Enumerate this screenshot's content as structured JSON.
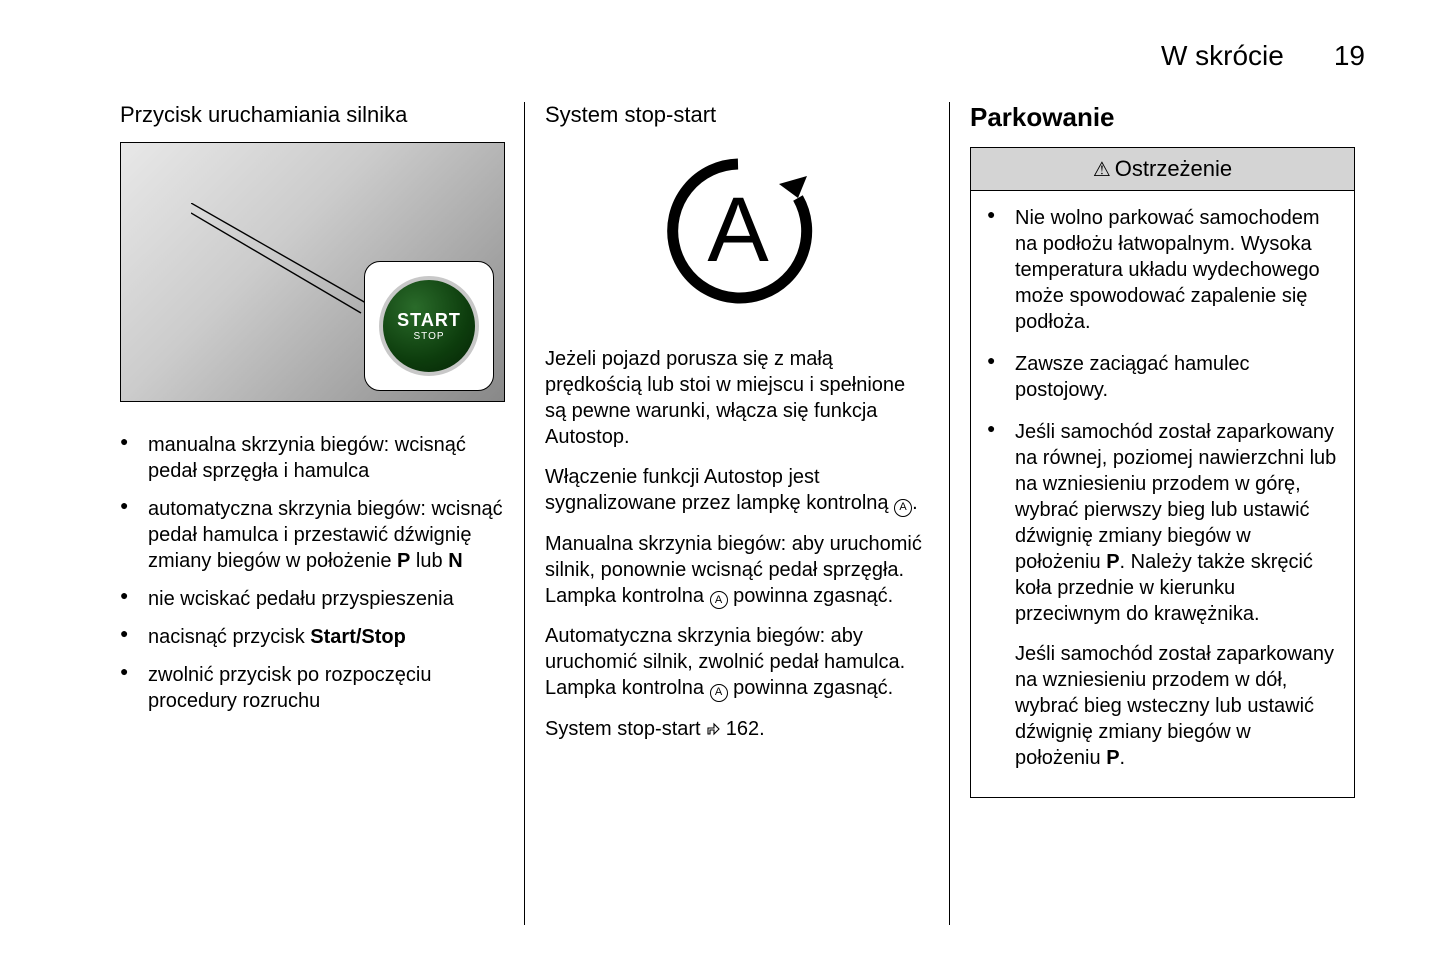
{
  "header": {
    "title": "W skrócie",
    "page_number": "19"
  },
  "col1": {
    "heading": "Przycisk uruchamiania silnika",
    "start_button": {
      "line1": "START",
      "line2": "STOP"
    },
    "bullets": [
      "manualna skrzynia biegów: wcisnąć pedał sprzęgła i hamulca",
      "automatyczna skrzynia biegów: wcisnąć pedał hamulca i przestawić dźwignię zmiany biegów w położenie P lub N",
      "nie wciskać pedału przyspieszenia",
      "nacisnąć przycisk Start/Stop",
      "zwolnić przycisk po rozpoczęciu procedury rozruchu"
    ]
  },
  "col2": {
    "heading": "System stop-start",
    "autostop_letter": "A",
    "p1": "Jeżeli pojazd porusza się z małą prędkością lub stoi w miejscu i spełnione są pewne warunki, włącza się funkcja Autostop.",
    "p2_pre": "Włączenie funkcji Autostop jest sygnalizowane przez lampkę kontrolną ",
    "p2_post": ".",
    "p3_pre": "Manualna skrzynia biegów: aby uruchomić silnik, ponownie wcisnąć pedał sprzęgła. Lampka kontrolna ",
    "p3_post": " powinna zgasnąć.",
    "p4_pre": "Automatyczna skrzynia biegów: aby uruchomić silnik, zwolnić pedał hamulca. Lampka kontrolna ",
    "p4_post": " powinna zgasnąć.",
    "ref_label": "System stop-start ",
    "ref_page": "162",
    "icon_letter": "A"
  },
  "col3": {
    "heading": "Parkowanie",
    "warning_title": "Ostrzeżenie",
    "bullets": [
      "Nie wolno parkować samochodem na podłożu łatwopalnym. Wysoka temperatura układu wydechowego może spowodować zapalenie się podłoża.",
      "Zawsze zaciągać hamulec postojowy.",
      "Jeśli samochód został zaparkowany na równej, poziomej nawierzchni lub na wzniesieniu przodem w górę, wybrać pierwszy bieg lub ustawić dźwignię zmiany biegów w położeniu P. Należy także skręcić koła przednie w kierunku przeciwnym do krawężnika."
    ],
    "cont_para": "Jeśli samochód został zaparkowany na wzniesieniu przodem w dół, wybrać bieg wsteczny lub ustawić dźwignię zmiany biegów w położeniu P."
  },
  "colors": {
    "background": "#ffffff",
    "text": "#000000",
    "warning_header_bg": "#d4d4d4",
    "border": "#000000"
  }
}
